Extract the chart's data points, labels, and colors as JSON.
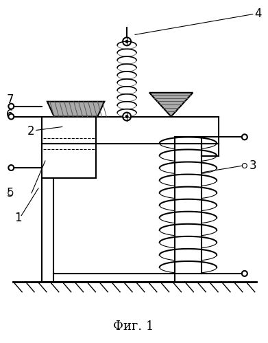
{
  "title": "Фиг. 1",
  "background": "#ffffff",
  "line_color": "#000000",
  "lw": 1.5
}
